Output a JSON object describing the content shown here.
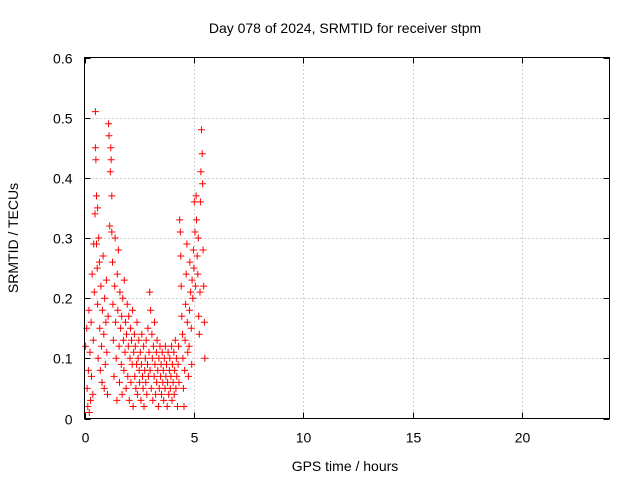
{
  "chart_data": {
    "type": "scatter",
    "title": "Day 078 of 2024, SRMTID for receiver stpm",
    "xlabel": "GPS time / hours",
    "ylabel": "SRMTID / TECUs",
    "xlim": [
      0,
      24
    ],
    "ylim": [
      0,
      0.6
    ],
    "xticks": [
      0,
      5,
      10,
      15,
      20
    ],
    "xtick_labels": [
      "0",
      "5",
      "10",
      "15",
      "20"
    ],
    "yticks": [
      0,
      0.1,
      0.2,
      0.3,
      0.4,
      0.5,
      0.6
    ],
    "ytick_labels": [
      "0",
      "0.1",
      "0.2",
      "0.3",
      "0.4",
      "0.5",
      "0.6"
    ],
    "grid": true,
    "marker": "+",
    "color": "#ff0000",
    "series": [
      {
        "name": "SRMTID",
        "points": [
          [
            0.05,
            0.12
          ],
          [
            0.1,
            0.15
          ],
          [
            0.12,
            0.05
          ],
          [
            0.15,
            0.02
          ],
          [
            0.18,
            0.08
          ],
          [
            0.2,
            0.18
          ],
          [
            0.22,
            0.01
          ],
          [
            0.25,
            0.11
          ],
          [
            0.28,
            0.03
          ],
          [
            0.3,
            0.16
          ],
          [
            0.32,
            0.07
          ],
          [
            0.35,
            0.24
          ],
          [
            0.38,
            0.04
          ],
          [
            0.4,
            0.13
          ],
          [
            0.42,
            0.29
          ],
          [
            0.45,
            0.21
          ],
          [
            0.48,
            0.34
          ],
          [
            0.5,
            0.51
          ],
          [
            0.5,
            0.45
          ],
          [
            0.52,
            0.43
          ],
          [
            0.55,
            0.37
          ],
          [
            0.55,
            0.29
          ],
          [
            0.58,
            0.25
          ],
          [
            0.6,
            0.35
          ],
          [
            0.6,
            0.19
          ],
          [
            0.62,
            0.1
          ],
          [
            0.65,
            0.3
          ],
          [
            0.68,
            0.26
          ],
          [
            0.7,
            0.15
          ],
          [
            0.72,
            0.08
          ],
          [
            0.75,
            0.22
          ],
          [
            0.78,
            0.12
          ],
          [
            0.8,
            0.06
          ],
          [
            0.82,
            0.18
          ],
          [
            0.85,
            0.27
          ],
          [
            0.88,
            0.14
          ],
          [
            0.9,
            0.05
          ],
          [
            0.92,
            0.2
          ],
          [
            0.95,
            0.09
          ],
          [
            0.98,
            0.16
          ],
          [
            1.0,
            0.23
          ],
          [
            1.02,
            0.11
          ],
          [
            1.05,
            0.04
          ],
          [
            1.08,
            0.17
          ],
          [
            1.1,
            0.49
          ],
          [
            1.12,
            0.47
          ],
          [
            1.15,
            0.32
          ],
          [
            1.18,
            0.41
          ],
          [
            1.2,
            0.45
          ],
          [
            1.22,
            0.43
          ],
          [
            1.25,
            0.37
          ],
          [
            1.25,
            0.31
          ],
          [
            1.28,
            0.26
          ],
          [
            1.3,
            0.19
          ],
          [
            1.32,
            0.13
          ],
          [
            1.35,
            0.07
          ],
          [
            1.38,
            0.22
          ],
          [
            1.4,
            0.3
          ],
          [
            1.42,
            0.16
          ],
          [
            1.45,
            0.1
          ],
          [
            1.48,
            0.03
          ],
          [
            1.5,
            0.24
          ],
          [
            1.52,
            0.18
          ],
          [
            1.55,
            0.28
          ],
          [
            1.58,
            0.12
          ],
          [
            1.6,
            0.06
          ],
          [
            1.62,
            0.21
          ],
          [
            1.65,
            0.15
          ],
          [
            1.68,
            0.09
          ],
          [
            1.7,
            0.17
          ],
          [
            1.72,
            0.04
          ],
          [
            1.75,
            0.2
          ],
          [
            1.78,
            0.13
          ],
          [
            1.8,
            0.08
          ],
          [
            1.82,
            0.23
          ],
          [
            1.85,
            0.11
          ],
          [
            1.88,
            0.16
          ],
          [
            1.9,
            0.05
          ],
          [
            1.92,
            0.14
          ],
          [
            1.95,
            0.19
          ],
          [
            1.98,
            0.07
          ],
          [
            2.0,
            0.12
          ],
          [
            2.02,
            0.17
          ],
          [
            2.05,
            0.03
          ],
          [
            2.08,
            0.1
          ],
          [
            2.1,
            0.15
          ],
          [
            2.12,
            0.06
          ],
          [
            2.15,
            0.13
          ],
          [
            2.18,
            0.09
          ],
          [
            2.2,
            0.18
          ],
          [
            2.22,
            0.02
          ],
          [
            2.25,
            0.11
          ],
          [
            2.28,
            0.14
          ],
          [
            2.3,
            0.07
          ],
          [
            2.32,
            0.12
          ],
          [
            2.35,
            0.05
          ],
          [
            2.38,
            0.09
          ],
          [
            2.4,
            0.16
          ],
          [
            2.42,
            0.04
          ],
          [
            2.45,
            0.1
          ],
          [
            2.48,
            0.13
          ],
          [
            2.5,
            0.08
          ],
          [
            2.52,
            0.06
          ],
          [
            2.55,
            0.11
          ],
          [
            2.58,
            0.03
          ],
          [
            2.6,
            0.09
          ],
          [
            2.62,
            0.14
          ],
          [
            2.65,
            0.07
          ],
          [
            2.68,
            0.05
          ],
          [
            2.7,
            0.12
          ],
          [
            2.72,
            0.02
          ],
          [
            2.75,
            0.08
          ],
          [
            2.78,
            0.1
          ],
          [
            2.8,
            0.06
          ],
          [
            2.82,
            0.13
          ],
          [
            2.85,
            0.04
          ],
          [
            2.88,
            0.09
          ],
          [
            2.9,
            0.15
          ],
          [
            2.92,
            0.07
          ],
          [
            2.95,
            0.11
          ],
          [
            2.98,
            0.21
          ],
          [
            3.0,
            0.08
          ],
          [
            3.02,
            0.18
          ],
          [
            3.05,
            0.05
          ],
          [
            3.08,
            0.14
          ],
          [
            3.1,
            0.1
          ],
          [
            3.12,
            0.03
          ],
          [
            3.15,
            0.12
          ],
          [
            3.18,
            0.07
          ],
          [
            3.2,
            0.16
          ],
          [
            3.22,
            0.09
          ],
          [
            3.25,
            0.04
          ],
          [
            3.28,
            0.11
          ],
          [
            3.3,
            0.06
          ],
          [
            3.32,
            0.13
          ],
          [
            3.35,
            0.08
          ],
          [
            3.38,
            0.02
          ],
          [
            3.4,
            0.1
          ],
          [
            3.42,
            0.05
          ],
          [
            3.45,
            0.12
          ],
          [
            3.48,
            0.07
          ],
          [
            3.5,
            0.09
          ],
          [
            3.52,
            0.04
          ],
          [
            3.55,
            0.11
          ],
          [
            3.58,
            0.06
          ],
          [
            3.6,
            0.08
          ],
          [
            3.62,
            0.03
          ],
          [
            3.65,
            0.1
          ],
          [
            3.68,
            0.05
          ],
          [
            3.7,
            0.12
          ],
          [
            3.72,
            0.07
          ],
          [
            3.75,
            0.09
          ],
          [
            3.78,
            0.02
          ],
          [
            3.8,
            0.06
          ],
          [
            3.82,
            0.11
          ],
          [
            3.85,
            0.04
          ],
          [
            3.88,
            0.08
          ],
          [
            3.9,
            0.1
          ],
          [
            3.92,
            0.05
          ],
          [
            3.95,
            0.07
          ],
          [
            3.98,
            0.12
          ],
          [
            4.0,
            0.03
          ],
          [
            4.02,
            0.09
          ],
          [
            4.05,
            0.06
          ],
          [
            4.08,
            0.11
          ],
          [
            4.1,
            0.04
          ],
          [
            4.12,
            0.08
          ],
          [
            4.15,
            0.13
          ],
          [
            4.18,
            0.05
          ],
          [
            4.2,
            0.1
          ],
          [
            4.22,
            0.07
          ],
          [
            4.25,
            0.02
          ],
          [
            4.28,
            0.09
          ],
          [
            4.3,
            0.12
          ],
          [
            4.32,
            0.06
          ],
          [
            4.35,
            0.33
          ],
          [
            4.38,
            0.31
          ],
          [
            4.4,
            0.27
          ],
          [
            4.42,
            0.22
          ],
          [
            4.45,
            0.17
          ],
          [
            4.48,
            0.14
          ],
          [
            4.5,
            0.1
          ],
          [
            4.52,
            0.05
          ],
          [
            4.55,
            0.02
          ],
          [
            4.58,
            0.08
          ],
          [
            4.6,
            0.13
          ],
          [
            4.62,
            0.19
          ],
          [
            4.65,
            0.24
          ],
          [
            4.68,
            0.29
          ],
          [
            4.7,
            0.16
          ],
          [
            4.72,
            0.11
          ],
          [
            4.75,
            0.07
          ],
          [
            4.78,
            0.12
          ],
          [
            4.8,
            0.18
          ],
          [
            4.82,
            0.26
          ],
          [
            4.85,
            0.21
          ],
          [
            4.88,
            0.15
          ],
          [
            4.9,
            0.09
          ],
          [
            4.92,
            0.23
          ],
          [
            4.95,
            0.2
          ],
          [
            4.98,
            0.28
          ],
          [
            5.0,
            0.25
          ],
          [
            5.02,
            0.36
          ],
          [
            5.05,
            0.31
          ],
          [
            5.08,
            0.22
          ],
          [
            5.1,
            0.37
          ],
          [
            5.12,
            0.33
          ],
          [
            5.15,
            0.27
          ],
          [
            5.18,
            0.24
          ],
          [
            5.2,
            0.3
          ],
          [
            5.22,
            0.17
          ],
          [
            5.25,
            0.14
          ],
          [
            5.28,
            0.21
          ],
          [
            5.3,
            0.36
          ],
          [
            5.32,
            0.41
          ],
          [
            5.35,
            0.48
          ],
          [
            5.38,
            0.44
          ],
          [
            5.4,
            0.39
          ],
          [
            5.42,
            0.28
          ],
          [
            5.45,
            0.22
          ],
          [
            5.48,
            0.16
          ],
          [
            5.5,
            0.1
          ]
        ]
      }
    ]
  }
}
